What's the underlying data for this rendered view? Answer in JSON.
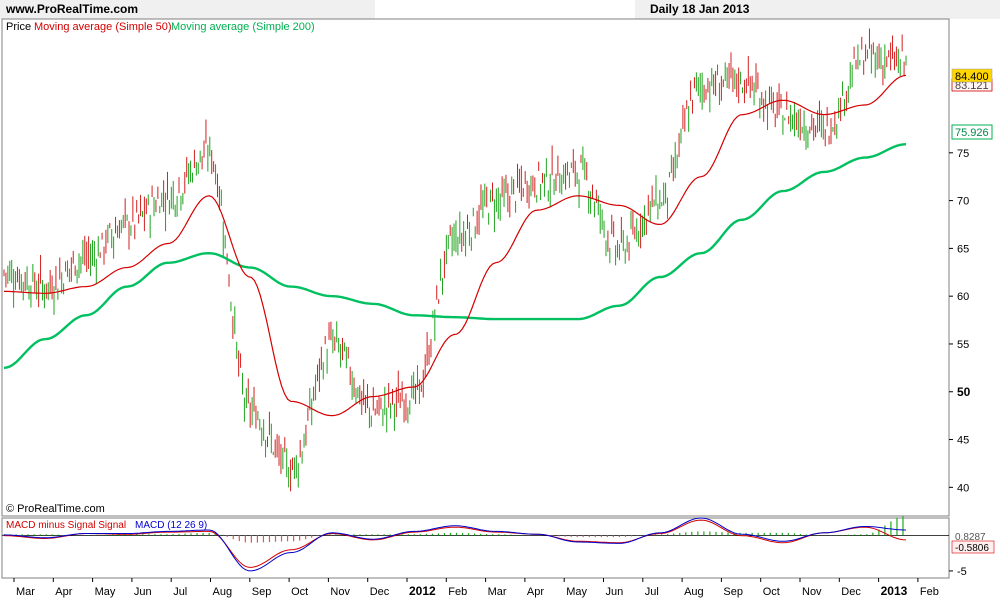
{
  "header": {
    "site": "www.ProRealTime.com",
    "period_date": "Daily  18 Jan 2013"
  },
  "main_chart": {
    "legend": [
      {
        "text": "Price",
        "color": "#000000"
      },
      {
        "text": "Moving average (Simple 50)",
        "color": "#d40000"
      },
      {
        "text": "Moving average (Simple 200)",
        "color": "#00b050"
      }
    ],
    "watermark": "© ProRealTime.com",
    "price_label": "84.400",
    "price_label_sub": "83.121",
    "ma200_label": "75.926"
  },
  "macd_panel": {
    "legend": [
      {
        "text": "MACD minus Signal Signal ",
        "color": "#d40000"
      },
      {
        "text": "MACD (12 26 9)",
        "color": "#0000cc"
      }
    ],
    "value_top": "0.8287",
    "value_bottom": "-0.5806"
  },
  "chart_data": {
    "type": "line",
    "title": "",
    "x_tick_labels": [
      "Mar",
      "Apr",
      "May",
      "Jun",
      "Jul",
      "Aug",
      "Sep",
      "Oct",
      "Nov",
      "Dec",
      "2012",
      "Feb",
      "Mar",
      "Apr",
      "May",
      "Jun",
      "Jul",
      "Aug",
      "Sep",
      "Oct",
      "Nov",
      "Dec",
      "2013",
      "Feb"
    ],
    "y_ticks": [
      "40",
      "45",
      "50",
      "55",
      "60",
      "65",
      "70",
      "75"
    ],
    "y_ticks_bold": [
      "50"
    ],
    "ylim": [
      37,
      89
    ],
    "macd_y_ticks": [
      "-5"
    ],
    "macd_ylim": [
      -6,
      2.5
    ],
    "months": [
      "Mar 2011",
      "Apr 2011",
      "May 2011",
      "Jun 2011",
      "Jul 2011",
      "Aug 2011",
      "Sep 2011",
      "Oct 2011",
      "Nov 2011",
      "Dec 2011",
      "Jan 2012",
      "Feb 2012",
      "Mar 2012",
      "Apr 2012",
      "May 2012",
      "Jun 2012",
      "Jul 2012",
      "Aug 2012",
      "Sep 2012",
      "Oct 2012",
      "Nov 2012",
      "Dec 2012",
      "Jan 2013"
    ],
    "series": [
      {
        "name": "Price",
        "values": [
          62.5,
          61.0,
          64.0,
          67.5,
          70.5,
          75.0,
          48.0,
          42.0,
          55.0,
          48.0,
          49.5,
          66.0,
          70.0,
          72.0,
          73.0,
          65.0,
          70.0,
          82.0,
          82.5,
          79.0,
          77.5,
          85.0,
          84.4
        ]
      },
      {
        "name": "Moving average (Simple 50)",
        "values": [
          60.5,
          60.3,
          61.0,
          63.0,
          65.5,
          70.5,
          62.0,
          49.0,
          47.5,
          49.5,
          50.5,
          56.0,
          63.5,
          69.0,
          70.5,
          69.5,
          67.5,
          72.5,
          79.0,
          80.5,
          79.0,
          80.0,
          83.1
        ]
      },
      {
        "name": "Moving average (Simple 200)",
        "values": [
          52.5,
          55.5,
          58.0,
          61.0,
          63.5,
          64.5,
          63.0,
          61.0,
          60.0,
          59.2,
          58.0,
          57.8,
          57.6,
          57.6,
          57.6,
          59.0,
          62.0,
          64.5,
          68.0,
          71.0,
          73.0,
          74.5,
          75.9
        ]
      }
    ],
    "macd_series": [
      {
        "name": "MACD minus Signal Signal",
        "values": [
          0.0,
          -0.4,
          0.3,
          0.2,
          0.5,
          0.6,
          -4.5,
          -2.0,
          0.3,
          -0.6,
          0.5,
          1.2,
          0.5,
          0.2,
          -0.8,
          -1.0,
          0.3,
          2.2,
          0.0,
          -1.0,
          0.4,
          1.2,
          -0.6
        ]
      },
      {
        "name": "MACD (12 26 9)",
        "values": [
          0.1,
          -0.3,
          0.3,
          0.3,
          0.6,
          0.8,
          -5.0,
          -2.4,
          0.4,
          -0.5,
          0.6,
          1.4,
          0.6,
          0.2,
          -0.9,
          -1.1,
          0.4,
          2.5,
          0.2,
          -0.8,
          0.4,
          1.3,
          0.8
        ]
      }
    ]
  }
}
